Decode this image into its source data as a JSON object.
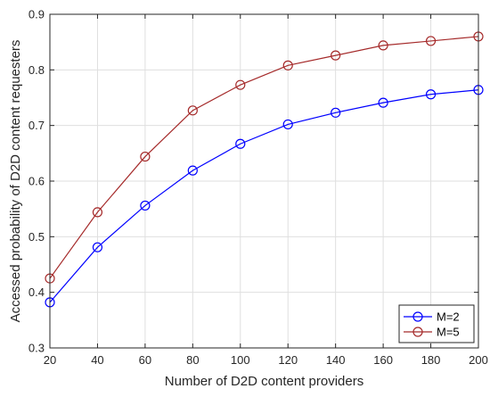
{
  "chart_data": {
    "type": "line",
    "title": "",
    "xlabel": "Number of D2D content providers",
    "ylabel": "Accessed probability of D2D content requesters",
    "x": [
      20,
      40,
      60,
      80,
      100,
      120,
      140,
      160,
      180,
      200
    ],
    "xticks": [
      "20",
      "40",
      "60",
      "80",
      "100",
      "120",
      "140",
      "160",
      "180",
      "200"
    ],
    "yticks": [
      "0.3",
      "0.4",
      "0.5",
      "0.6",
      "0.7",
      "0.8",
      "0.9"
    ],
    "xlim": [
      20,
      200
    ],
    "ylim": [
      0.3,
      0.9
    ],
    "grid": true,
    "legend_position": "bottom-right",
    "series": [
      {
        "name": "M=2",
        "color": "#0000ff",
        "marker": "circle",
        "values": [
          0.382,
          0.481,
          0.556,
          0.619,
          0.667,
          0.702,
          0.723,
          0.741,
          0.756,
          0.764
        ]
      },
      {
        "name": "M=5",
        "color": "#a52a2a",
        "marker": "circle",
        "values": [
          0.425,
          0.544,
          0.644,
          0.727,
          0.773,
          0.808,
          0.826,
          0.844,
          0.852,
          0.86
        ]
      }
    ]
  }
}
